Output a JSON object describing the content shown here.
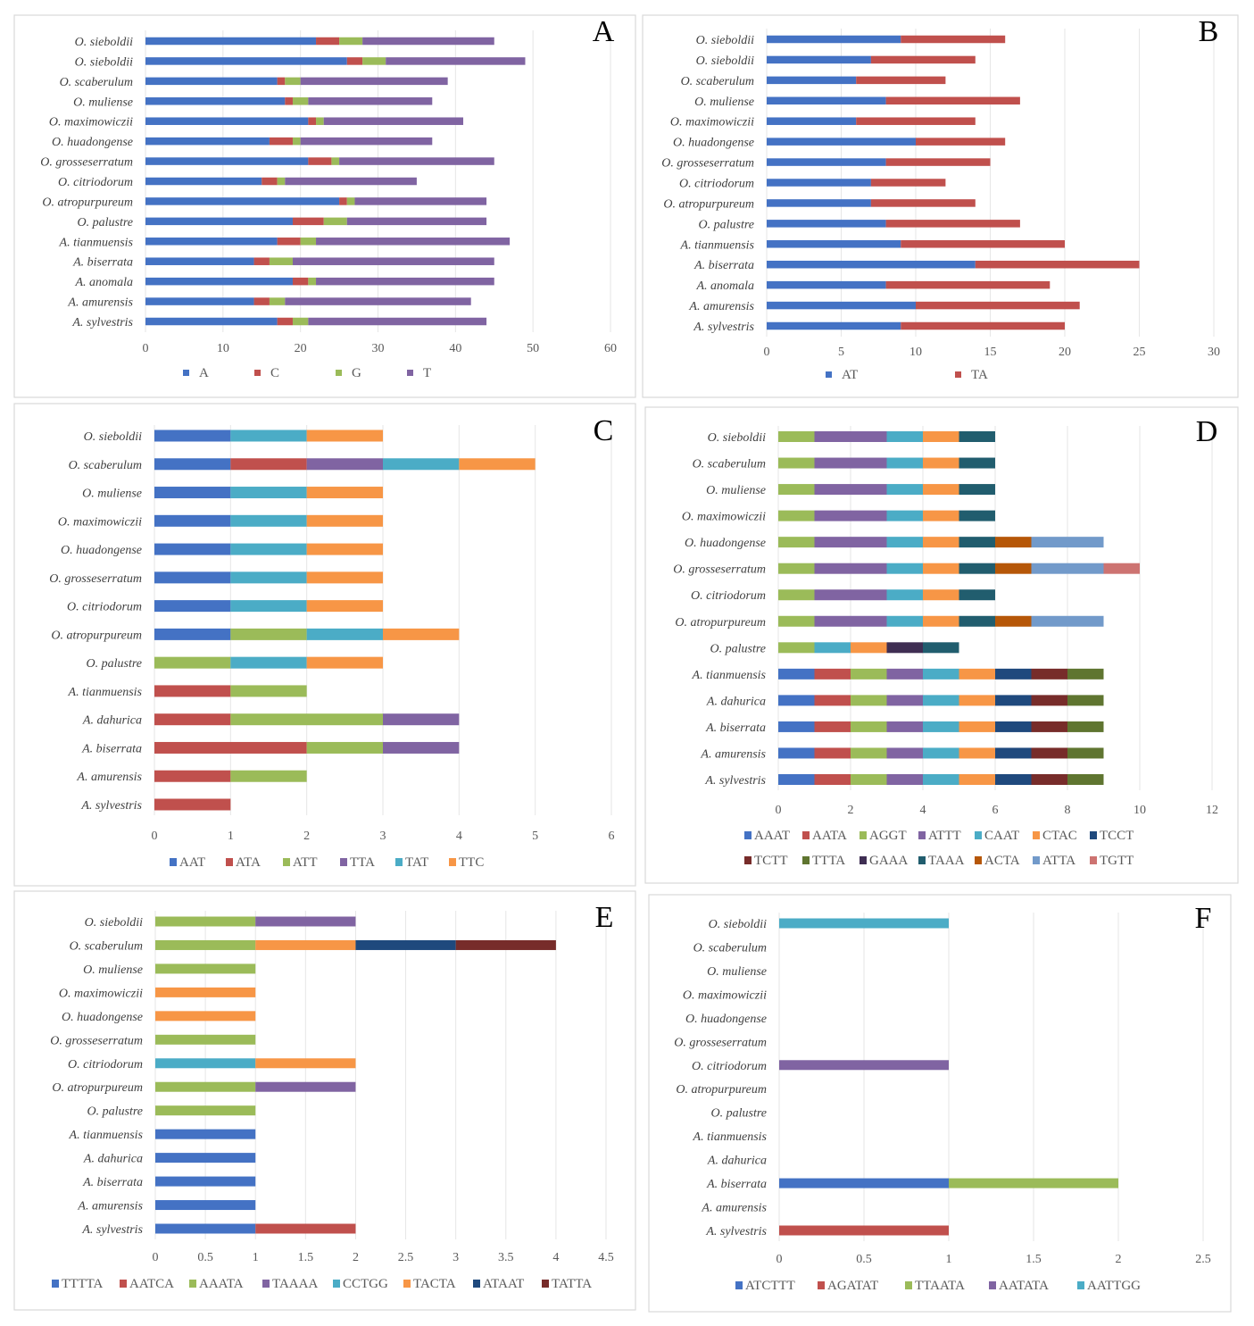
{
  "chart_data": [
    {
      "panel": "A",
      "type": "bar",
      "orientation": "horizontal",
      "stacked": true,
      "xlim": [
        0,
        60
      ],
      "ticks": [
        0,
        10,
        20,
        30,
        40,
        50,
        60
      ],
      "grid": true,
      "legend_position": "bottom",
      "categories": [
        "O. sieboldii",
        "O. sieboldii",
        "O. scaberulum",
        "O. muliense",
        "O. maximowiczii",
        "O. huadongense",
        "O. grosseserratum",
        "O. citriodorum",
        "O. atropurpureum",
        "O. palustre",
        "A. tianmuensis",
        "A. biserrata",
        "A. anomala",
        "A. amurensis",
        "A. sylvestris"
      ],
      "series": [
        {
          "name": "A",
          "color": "#4472C4",
          "values": [
            22,
            26,
            17,
            18,
            21,
            16,
            21,
            15,
            25,
            19,
            17,
            14,
            19,
            14,
            17
          ]
        },
        {
          "name": "C",
          "color": "#C0504D",
          "values": [
            3,
            2,
            1,
            1,
            1,
            3,
            3,
            2,
            1,
            4,
            3,
            2,
            2,
            2,
            2
          ]
        },
        {
          "name": "G",
          "color": "#9BBB59",
          "values": [
            3,
            3,
            2,
            2,
            1,
            1,
            1,
            1,
            1,
            3,
            2,
            3,
            1,
            2,
            2
          ]
        },
        {
          "name": "T",
          "color": "#8064A2",
          "values": [
            17,
            18,
            19,
            16,
            18,
            17,
            20,
            17,
            17,
            18,
            25,
            26,
            23,
            24,
            23
          ]
        }
      ]
    },
    {
      "panel": "B",
      "type": "bar",
      "orientation": "horizontal",
      "stacked": true,
      "xlim": [
        0,
        30
      ],
      "ticks": [
        0,
        5,
        10,
        15,
        20,
        25,
        30
      ],
      "grid": true,
      "legend_position": "bottom",
      "categories": [
        "O. sieboldii",
        "O. sieboldii",
        "O. scaberulum",
        "O. muliense",
        "O. maximowiczii",
        "O. huadongense",
        "O. grosseserratum",
        "O. citriodorum",
        "O. atropurpureum",
        "O. palustre",
        "A. tianmuensis",
        "A. biserrata",
        "A. anomala",
        "A. amurensis",
        "A. sylvestris"
      ],
      "series": [
        {
          "name": "AT",
          "color": "#4472C4",
          "values": [
            9,
            7,
            6,
            8,
            6,
            10,
            8,
            7,
            7,
            8,
            9,
            14,
            8,
            10,
            9
          ]
        },
        {
          "name": "TA",
          "color": "#C0504D",
          "values": [
            7,
            7,
            6,
            9,
            8,
            6,
            7,
            5,
            7,
            9,
            11,
            11,
            11,
            11,
            11
          ]
        }
      ]
    },
    {
      "panel": "C",
      "type": "bar",
      "orientation": "horizontal",
      "stacked": true,
      "xlim": [
        0,
        6
      ],
      "ticks": [
        0,
        1,
        2,
        3,
        4,
        5,
        6
      ],
      "grid": true,
      "legend_position": "bottom",
      "categories": [
        "O. sieboldii",
        "O. scaberulum",
        "O. muliense",
        "O. maximowiczii",
        "O. huadongense",
        "O. grosseserratum",
        "O. citriodorum",
        "O. atropurpureum",
        "O. palustre",
        "A. tianmuensis",
        "A. dahurica",
        "A. biserrata",
        "A. amurensis",
        "A. sylvestris"
      ],
      "series": [
        {
          "name": "AAT",
          "color": "#4472C4",
          "values": [
            1,
            1,
            1,
            1,
            1,
            1,
            1,
            1,
            0,
            0,
            0,
            0,
            0,
            0
          ]
        },
        {
          "name": "ATA",
          "color": "#C0504D",
          "values": [
            0,
            1,
            0,
            0,
            0,
            0,
            0,
            0,
            0,
            1,
            1,
            2,
            1,
            1
          ]
        },
        {
          "name": "ATT",
          "color": "#9BBB59",
          "values": [
            0,
            0,
            0,
            0,
            0,
            0,
            0,
            1,
            1,
            1,
            2,
            1,
            1,
            0
          ]
        },
        {
          "name": "TTA",
          "color": "#8064A2",
          "values": [
            0,
            1,
            0,
            0,
            0,
            0,
            0,
            0,
            0,
            0,
            1,
            1,
            0,
            0
          ]
        },
        {
          "name": "TAT",
          "color": "#4BACC6",
          "values": [
            1,
            1,
            1,
            1,
            1,
            1,
            1,
            1,
            1,
            0,
            0,
            0,
            0,
            0
          ]
        },
        {
          "name": "TTC",
          "color": "#F79646",
          "values": [
            1,
            1,
            1,
            1,
            1,
            1,
            1,
            1,
            1,
            0,
            0,
            0,
            0,
            0
          ]
        }
      ]
    },
    {
      "panel": "D",
      "type": "bar",
      "orientation": "horizontal",
      "stacked": true,
      "xlim": [
        0,
        12
      ],
      "ticks": [
        0,
        2,
        4,
        6,
        8,
        10,
        12
      ],
      "grid": true,
      "legend_position": "bottom",
      "categories": [
        "O. sieboldii",
        "O. scaberulum",
        "O. muliense",
        "O. maximowiczii",
        "O. huadongense",
        "O. grosseserratum",
        "O. citriodorum",
        "O. atropurpureum",
        "O. palustre",
        "A. tianmuensis",
        "A. dahurica",
        "A. biserrata",
        "A. amurensis",
        "A. sylvestris"
      ],
      "series": [
        {
          "name": "AAAT",
          "color": "#4472C4",
          "values": [
            0,
            0,
            0,
            0,
            0,
            0,
            0,
            0,
            0,
            1,
            1,
            1,
            1,
            1
          ]
        },
        {
          "name": "AATA",
          "color": "#C0504D",
          "values": [
            0,
            0,
            0,
            0,
            0,
            0,
            0,
            0,
            0,
            1,
            1,
            1,
            1,
            1
          ]
        },
        {
          "name": "AGGT",
          "color": "#9BBB59",
          "values": [
            1,
            1,
            1,
            1,
            1,
            1,
            1,
            1,
            1,
            1,
            1,
            1,
            1,
            1
          ]
        },
        {
          "name": "ATTT",
          "color": "#8064A2",
          "values": [
            2,
            2,
            2,
            2,
            2,
            2,
            2,
            2,
            0,
            1,
            1,
            1,
            1,
            1
          ]
        },
        {
          "name": "CAAT",
          "color": "#4BACC6",
          "values": [
            1,
            1,
            1,
            1,
            1,
            1,
            1,
            1,
            1,
            1,
            1,
            1,
            1,
            1
          ]
        },
        {
          "name": "CTAC",
          "color": "#F79646",
          "values": [
            1,
            1,
            1,
            1,
            1,
            1,
            1,
            1,
            1,
            1,
            1,
            1,
            1,
            1
          ]
        },
        {
          "name": "TCCT",
          "color": "#1F497D",
          "values": [
            0,
            0,
            0,
            0,
            0,
            0,
            0,
            0,
            0,
            1,
            1,
            1,
            1,
            1
          ]
        },
        {
          "name": "TCTT",
          "color": "#772C2A",
          "values": [
            0,
            0,
            0,
            0,
            0,
            0,
            0,
            0,
            0,
            1,
            1,
            1,
            1,
            1
          ]
        },
        {
          "name": "TTTA",
          "color": "#5F7530",
          "values": [
            0,
            0,
            0,
            0,
            0,
            0,
            0,
            0,
            0,
            1,
            1,
            1,
            1,
            1
          ]
        },
        {
          "name": "GAAA",
          "color": "#3F2E53",
          "values": [
            0,
            0,
            0,
            0,
            0,
            0,
            0,
            0,
            1,
            0,
            0,
            0,
            0,
            0
          ]
        },
        {
          "name": "TAAA",
          "color": "#215D6E",
          "values": [
            1,
            1,
            1,
            1,
            1,
            1,
            1,
            1,
            1,
            0,
            0,
            0,
            0,
            0
          ]
        },
        {
          "name": "ACTA",
          "color": "#B65708",
          "values": [
            0,
            0,
            0,
            0,
            1,
            1,
            0,
            1,
            0,
            0,
            0,
            0,
            0,
            0
          ]
        },
        {
          "name": "ATTA",
          "color": "#729ACA",
          "values": [
            0,
            0,
            0,
            0,
            2,
            2,
            0,
            2,
            0,
            0,
            0,
            0,
            0,
            0
          ]
        },
        {
          "name": "TGTT",
          "color": "#CD7371",
          "values": [
            0,
            0,
            0,
            0,
            0,
            1,
            0,
            0,
            0,
            0,
            0,
            0,
            0,
            0
          ]
        }
      ]
    },
    {
      "panel": "E",
      "type": "bar",
      "orientation": "horizontal",
      "stacked": true,
      "xlim": [
        0,
        4.5
      ],
      "ticks": [
        0,
        0.5,
        1,
        1.5,
        2,
        2.5,
        3,
        3.5,
        4,
        4.5
      ],
      "grid": true,
      "legend_position": "bottom",
      "categories": [
        "O. sieboldii",
        "O. scaberulum",
        "O. muliense",
        "O. maximowiczii",
        "O. huadongense",
        "O. grosseserratum",
        "O. citriodorum",
        "O. atropurpureum",
        "O. palustre",
        "A. tianmuensis",
        "A. dahurica",
        "A. biserrata",
        "A. amurensis",
        "A. sylvestris"
      ],
      "series": [
        {
          "name": "TTTTA",
          "color": "#4472C4",
          "values": [
            0,
            0,
            0,
            0,
            0,
            0,
            0,
            0,
            0,
            1,
            1,
            1,
            1,
            1
          ]
        },
        {
          "name": "AATCA",
          "color": "#C0504D",
          "values": [
            0,
            0,
            0,
            0,
            0,
            0,
            0,
            0,
            0,
            0,
            0,
            0,
            0,
            1
          ]
        },
        {
          "name": "AAATA",
          "color": "#9BBB59",
          "values": [
            1,
            1,
            1,
            0,
            0,
            1,
            0,
            1,
            1,
            0,
            0,
            0,
            0,
            0
          ]
        },
        {
          "name": "TAAAA",
          "color": "#8064A2",
          "values": [
            1,
            0,
            0,
            0,
            0,
            0,
            0,
            1,
            0,
            0,
            0,
            0,
            0,
            0
          ]
        },
        {
          "name": "CCTGG",
          "color": "#4BACC6",
          "values": [
            0,
            0,
            0,
            0,
            0,
            0,
            1,
            0,
            0,
            0,
            0,
            0,
            0,
            0
          ]
        },
        {
          "name": "TACTA",
          "color": "#F79646",
          "values": [
            0,
            1,
            0,
            1,
            1,
            0,
            1,
            0,
            0,
            0,
            0,
            0,
            0,
            0
          ]
        },
        {
          "name": "ATAAT",
          "color": "#1F497D",
          "values": [
            0,
            1,
            0,
            0,
            0,
            0,
            0,
            0,
            0,
            0,
            0,
            0,
            0,
            0
          ]
        },
        {
          "name": "TATTA",
          "color": "#772C2A",
          "values": [
            0,
            1,
            0,
            0,
            0,
            0,
            0,
            0,
            0,
            0,
            0,
            0,
            0,
            0
          ]
        }
      ]
    },
    {
      "panel": "F",
      "type": "bar",
      "orientation": "horizontal",
      "stacked": true,
      "xlim": [
        0,
        2.5
      ],
      "ticks": [
        0,
        0.5,
        1,
        1.5,
        2,
        2.5
      ],
      "grid": true,
      "legend_position": "bottom",
      "categories": [
        "O. sieboldii",
        "O. scaberulum",
        "O. muliense",
        "O. maximowiczii",
        "O. huadongense",
        "O. grosseserratum",
        "O. citriodorum",
        "O. atropurpureum",
        "O. palustre",
        "A. tianmuensis",
        "A. dahurica",
        "A. biserrata",
        "A. amurensis",
        "A. sylvestris"
      ],
      "series": [
        {
          "name": "ATCTTT",
          "color": "#4472C4",
          "values": [
            0,
            0,
            0,
            0,
            0,
            0,
            0,
            0,
            0,
            0,
            0,
            1,
            0,
            0
          ]
        },
        {
          "name": "AGATAT",
          "color": "#C0504D",
          "values": [
            0,
            0,
            0,
            0,
            0,
            0,
            0,
            0,
            0,
            0,
            0,
            0,
            0,
            1
          ]
        },
        {
          "name": "TTAATA",
          "color": "#9BBB59",
          "values": [
            0,
            0,
            0,
            0,
            0,
            0,
            0,
            0,
            0,
            0,
            0,
            1,
            0,
            0
          ]
        },
        {
          "name": "AATATA",
          "color": "#8064A2",
          "values": [
            0,
            0,
            0,
            0,
            0,
            0,
            1,
            0,
            0,
            0,
            0,
            0,
            0,
            0
          ]
        },
        {
          "name": "AATTGG",
          "color": "#4BACC6",
          "values": [
            1,
            0,
            0,
            0,
            0,
            0,
            0,
            0,
            0,
            0,
            0,
            0,
            0,
            0
          ]
        }
      ]
    }
  ]
}
